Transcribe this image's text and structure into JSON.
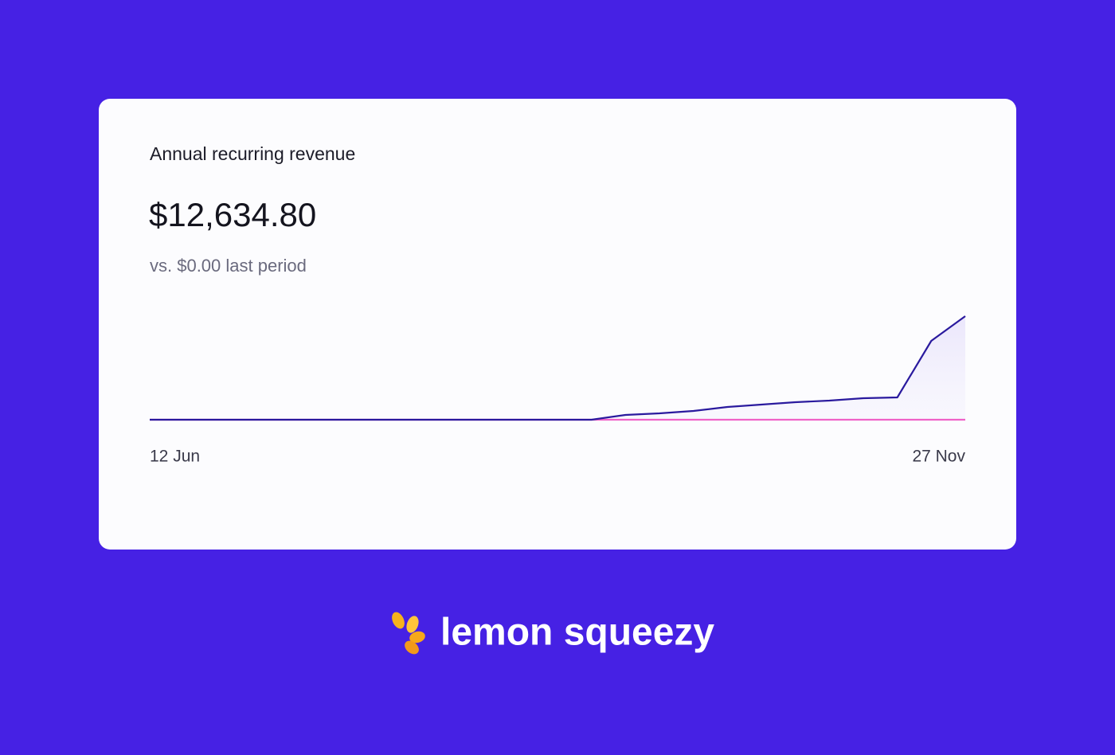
{
  "chart_data": {
    "type": "line",
    "title": "Annual recurring revenue",
    "headline": "$12,634.80",
    "comparison": "vs. $0.00 last period",
    "categories": [
      "12 Jun",
      null,
      null,
      null,
      null,
      null,
      null,
      null,
      null,
      null,
      null,
      null,
      null,
      null,
      null,
      null,
      null,
      null,
      null,
      null,
      null,
      null,
      null,
      null,
      "27 Nov"
    ],
    "series": [
      {
        "color": "#f062c8",
        "values": [
          0,
          0,
          0,
          0,
          0,
          0,
          0,
          0,
          0,
          0,
          0,
          0,
          0,
          0,
          0,
          0,
          0,
          0,
          0,
          0,
          0,
          0,
          0,
          0,
          0
        ]
      },
      {
        "color": "#2a1a9e",
        "values": [
          0,
          0,
          0,
          0,
          0,
          0,
          0,
          0,
          0,
          0,
          0,
          0,
          0,
          0,
          583,
          778,
          1069,
          1555,
          1847,
          2138,
          2333,
          2624,
          2722,
          9623,
          12634.8
        ]
      }
    ],
    "ylim": [
      0,
      12634.8
    ],
    "area": true
  },
  "brand": {
    "name": "lemon squeezy"
  }
}
